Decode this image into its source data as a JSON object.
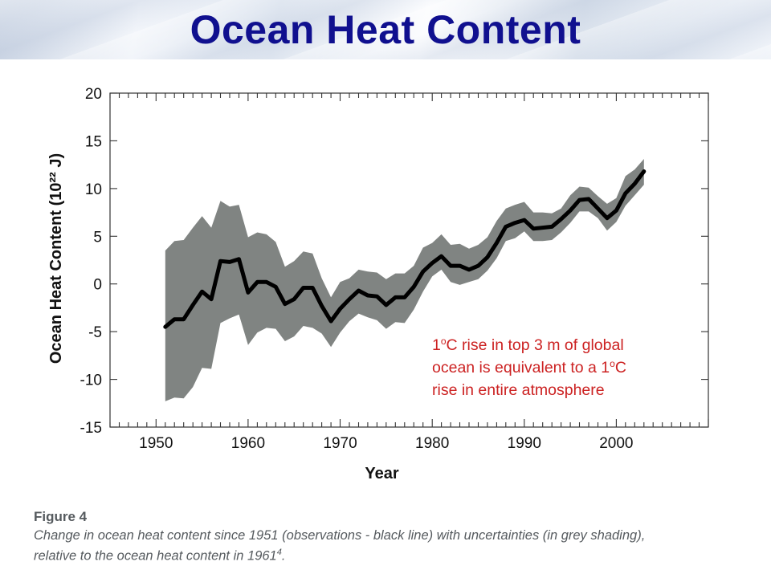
{
  "slide": {
    "title": "Ocean Heat Content",
    "annotation": {
      "line1_a": "1",
      "line1_sup": "o",
      "line1_b": "C rise in top 3 m of global",
      "line2_a": "ocean is equivalent to a 1",
      "line2_sup": "o",
      "line2_b": "C",
      "line3": "rise in entire atmosphere"
    },
    "figure_label": "Figure 4",
    "figure_caption_line1": "Change in ocean heat content since 1951 (observations - black line) with uncertainties (in grey shading),",
    "figure_caption_line2": "relative to the ocean heat content in 1961",
    "figure_caption_ref": "4",
    "figure_caption_end": "."
  },
  "colors": {
    "title": "#10108f",
    "annotation": "#cc2222",
    "band": "#808482",
    "line": "#000000",
    "caption": "#555a5e"
  },
  "chart_data": {
    "type": "line",
    "title": "",
    "xlabel": "Year",
    "ylabel": "Ocean Heat Content (10²² J)",
    "xlim": [
      1945,
      2010
    ],
    "ylim": [
      -15,
      20
    ],
    "xticks": [
      1950,
      1960,
      1970,
      1980,
      1990,
      2000
    ],
    "yticks": [
      20,
      15,
      10,
      5,
      0,
      -5,
      -10,
      -15
    ],
    "grid": false,
    "x": [
      1951,
      1952,
      1953,
      1954,
      1955,
      1956,
      1957,
      1958,
      1959,
      1960,
      1961,
      1962,
      1963,
      1964,
      1965,
      1966,
      1967,
      1968,
      1969,
      1970,
      1971,
      1972,
      1973,
      1974,
      1975,
      1976,
      1977,
      1978,
      1979,
      1980,
      1981,
      1982,
      1983,
      1984,
      1985,
      1986,
      1987,
      1988,
      1989,
      1990,
      1991,
      1992,
      1993,
      1994,
      1995,
      1996,
      1997,
      1998,
      1999,
      2000,
      2001,
      2002,
      2003
    ],
    "series": [
      {
        "values": [
          -4.5,
          -3.7,
          -3.7,
          -2.2,
          -0.8,
          -1.6,
          2.4,
          2.3,
          2.6,
          -0.9,
          0.2,
          0.2,
          -0.3,
          -2.1,
          -1.6,
          -0.4,
          -0.4,
          -2.3,
          -3.9,
          -2.6,
          -1.6,
          -0.7,
          -1.2,
          -1.3,
          -2.2,
          -1.4,
          -1.4,
          -0.3,
          1.3,
          2.2,
          2.9,
          1.9,
          1.9,
          1.5,
          1.9,
          2.8,
          4.3,
          6.0,
          6.4,
          6.7,
          5.8,
          5.9,
          6.0,
          6.8,
          7.7,
          8.8,
          8.9,
          7.9,
          6.9,
          7.7,
          9.5,
          10.5,
          11.8
        ]
      }
    ],
    "band": {
      "upper": [
        3.5,
        4.5,
        4.6,
        5.9,
        7.1,
        5.9,
        8.7,
        8.1,
        8.3,
        4.9,
        5.4,
        5.2,
        4.4,
        1.8,
        2.4,
        3.4,
        3.2,
        0.6,
        -1.4,
        0.2,
        0.6,
        1.5,
        1.3,
        1.2,
        0.5,
        1.1,
        1.1,
        1.9,
        3.8,
        4.3,
        5.2,
        4.1,
        4.2,
        3.7,
        4.1,
        4.9,
        6.6,
        7.9,
        8.3,
        8.6,
        7.5,
        7.5,
        7.4,
        7.9,
        9.3,
        10.2,
        10.1,
        9.2,
        8.4,
        9.0,
        11.3,
        12.0,
        13.1
      ],
      "lower": [
        -12.3,
        -11.9,
        -12.0,
        -10.8,
        -8.8,
        -8.9,
        -4.1,
        -3.6,
        -3.2,
        -6.4,
        -5.1,
        -4.6,
        -4.7,
        -6.0,
        -5.5,
        -4.4,
        -4.6,
        -5.2,
        -6.6,
        -5.1,
        -3.9,
        -3.1,
        -3.5,
        -3.8,
        -4.7,
        -4.0,
        -4.1,
        -2.7,
        -0.8,
        0.8,
        1.5,
        0.2,
        -0.1,
        0.2,
        0.5,
        1.4,
        2.7,
        4.5,
        4.8,
        5.5,
        4.5,
        4.5,
        4.6,
        5.4,
        6.4,
        7.6,
        7.6,
        6.9,
        5.6,
        6.5,
        8.2,
        9.3,
        10.4
      ]
    }
  }
}
